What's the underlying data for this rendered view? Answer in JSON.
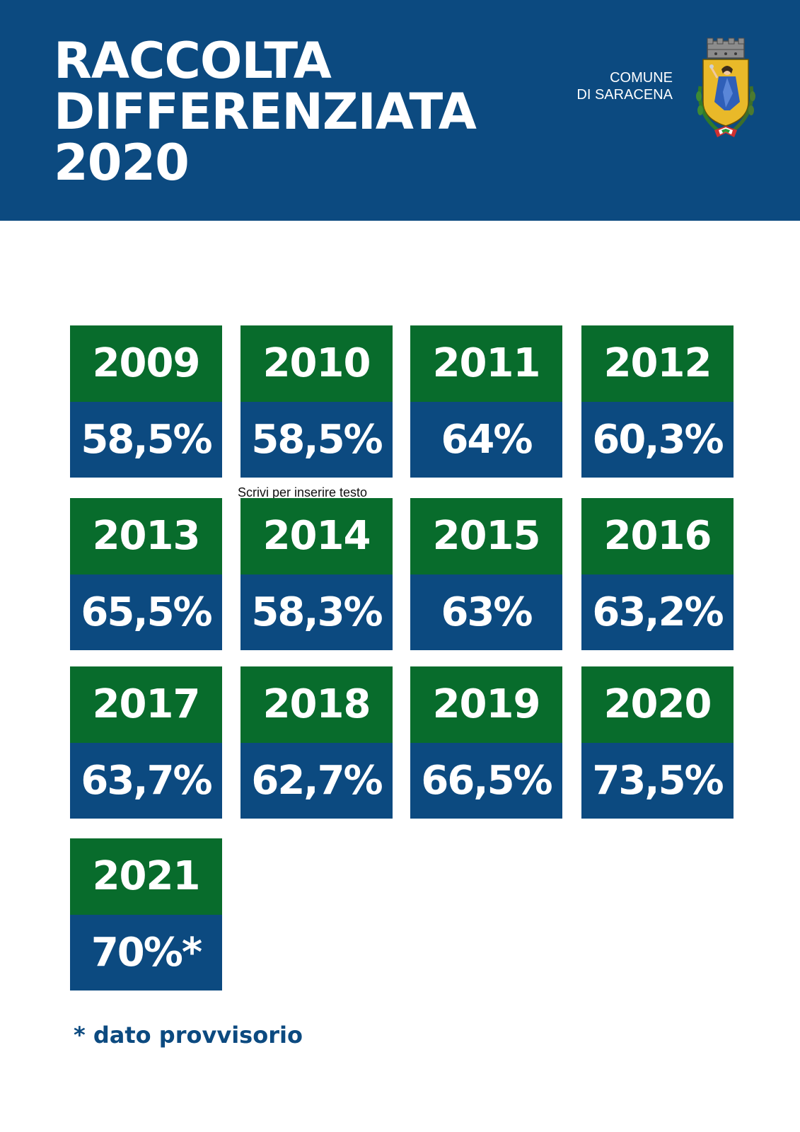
{
  "header": {
    "title_lines": [
      "RACCOLTA",
      "DIFFERENZIATA",
      "2020"
    ],
    "comune_lines": [
      "COMUNE",
      "DI SARACENA"
    ],
    "bg_color": "#0c4a80",
    "crest_icon": "saracena-coat-of-arms-icon"
  },
  "tiles": [
    {
      "year": "2009",
      "pct": "58,5%"
    },
    {
      "year": "2010",
      "pct": "58,5%"
    },
    {
      "year": "2011",
      "pct": "64%"
    },
    {
      "year": "2012",
      "pct": "60,3%"
    },
    {
      "year": "2013",
      "pct": "65,5%"
    },
    {
      "year": "2014",
      "pct": "58,3%"
    },
    {
      "year": "2015",
      "pct": "63%"
    },
    {
      "year": "2016",
      "pct": "63,2%"
    },
    {
      "year": "2017",
      "pct": "63,7%"
    },
    {
      "year": "2018",
      "pct": "62,7%"
    },
    {
      "year": "2019",
      "pct": "66,5%"
    },
    {
      "year": "2020",
      "pct": "73,5%"
    },
    {
      "year": "2021",
      "pct": "70%*"
    }
  ],
  "tile_colors": {
    "year_bg": "#086c2c",
    "pct_bg": "#0c4a80"
  },
  "placeholder_text": "Scrivi per inserire testo",
  "footnote": "* dato provvisorio"
}
